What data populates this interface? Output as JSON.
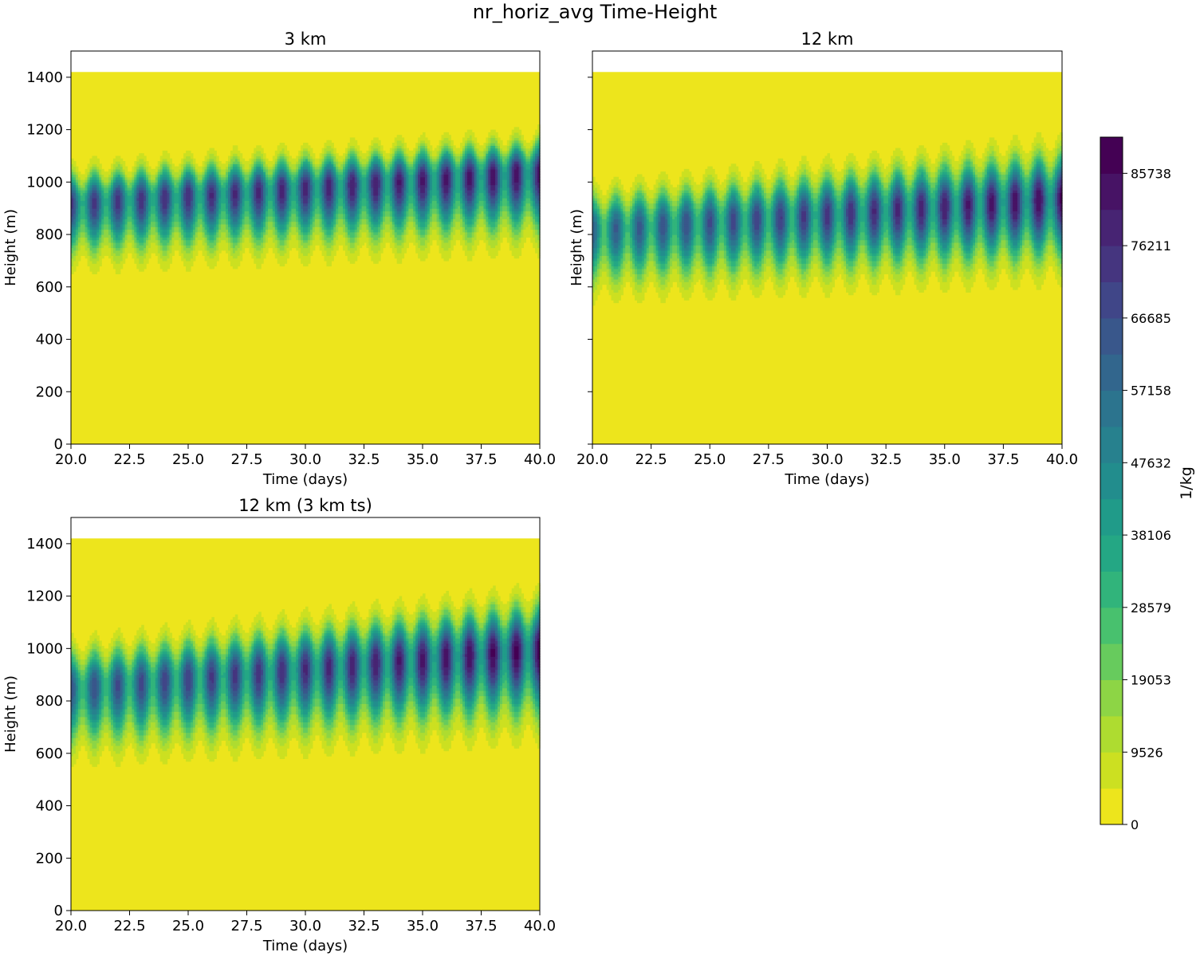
{
  "figure": {
    "suptitle": "nr_horiz_avg Time-Height"
  },
  "colors": {
    "viridis_stops": [
      "#ede51c",
      "#c3df23",
      "#9dd93b",
      "#6ccd5a",
      "#43bf71",
      "#28ae80",
      "#1f9f88",
      "#228d8d",
      "#287d8e",
      "#2f6c8e",
      "#38598c",
      "#414487",
      "#472d7b",
      "#48186a",
      "#440154"
    ]
  },
  "chart_data": [
    {
      "type": "heatmap",
      "subtype": "filled-contour",
      "title": "3 km",
      "xlabel": "Time (days)",
      "ylabel": "Height (m)",
      "xlim": [
        20.0,
        40.0
      ],
      "ylim": [
        0,
        1500
      ],
      "xticks": [
        "20.0",
        "22.5",
        "25.0",
        "27.5",
        "30.0",
        "32.5",
        "35.0",
        "37.5",
        "40.0"
      ],
      "yticks": [
        "0",
        "200",
        "400",
        "600",
        "800",
        "1000",
        "1200",
        "1400"
      ],
      "data_top_height_m": 1420,
      "max_value_start": 74000,
      "max_value_end": 86000,
      "center_height_start_m": 920,
      "center_height_end_m": 1040,
      "cloud_base_start_m": 580,
      "cloud_base_end_m": 640,
      "cloud_top_start_m": 1120,
      "cloud_top_end_m": 1240,
      "cycles": 20
    },
    {
      "type": "heatmap",
      "subtype": "filled-contour",
      "title": "12 km",
      "xlabel": "Time (days)",
      "ylabel": "Height (m)",
      "xlim": [
        20.0,
        40.0
      ],
      "ylim": [
        0,
        1500
      ],
      "xticks": [
        "20.0",
        "22.5",
        "25.0",
        "27.5",
        "30.0",
        "32.5",
        "35.0",
        "37.5",
        "40.0"
      ],
      "yticks": [],
      "data_top_height_m": 1420,
      "max_value_start": 62000,
      "max_value_end": 88000,
      "center_height_start_m": 820,
      "center_height_end_m": 940,
      "cloud_base_start_m": 450,
      "cloud_base_end_m": 520,
      "cloud_top_start_m": 1060,
      "cloud_top_end_m": 1240,
      "cycles": 20
    },
    {
      "type": "heatmap",
      "subtype": "filled-contour",
      "title": "12 km (3 km ts)",
      "xlabel": "Time (days)",
      "ylabel": "Height (m)",
      "xlim": [
        20.0,
        40.0
      ],
      "ylim": [
        0,
        1500
      ],
      "xticks": [
        "20.0",
        "22.5",
        "25.0",
        "27.5",
        "30.0",
        "32.5",
        "35.0",
        "37.5",
        "40.0"
      ],
      "yticks": [
        "0",
        "200",
        "400",
        "600",
        "800",
        "1000",
        "1200",
        "1400"
      ],
      "data_top_height_m": 1420,
      "max_value_start": 66000,
      "max_value_end": 90000,
      "center_height_start_m": 850,
      "center_height_end_m": 1000,
      "cloud_base_start_m": 460,
      "cloud_base_end_m": 540,
      "cloud_top_start_m": 1100,
      "cloud_top_end_m": 1300,
      "cycles": 20
    },
    {
      "type": "colorbar",
      "label": "1/kg",
      "range": [
        0,
        90500
      ],
      "levels": 19,
      "ticks": [
        "0",
        "9526",
        "19053",
        "28579",
        "38106",
        "47632",
        "57158",
        "66685",
        "76211",
        "85738"
      ],
      "tick_values": [
        0,
        9526,
        19053,
        28579,
        38106,
        47632,
        57158,
        66685,
        76211,
        85738
      ]
    }
  ]
}
